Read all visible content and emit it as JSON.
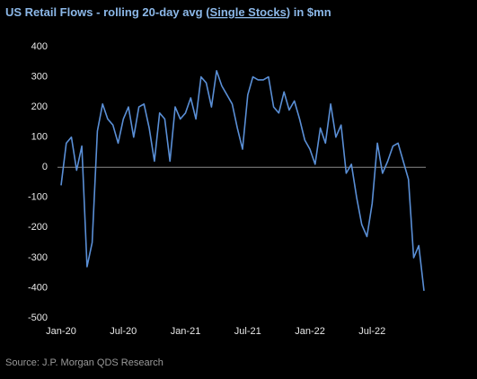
{
  "chart_data": {
    "type": "line",
    "title": [
      "US Retail Flows - rolling 20-day avg (",
      "Single Stocks",
      ") in $mn"
    ],
    "source": "Source: J.P. Morgan QDS Research",
    "categories": [
      "Jan-20",
      null,
      null,
      null,
      null,
      null,
      null,
      null,
      null,
      null,
      null,
      null,
      "Jul-20",
      null,
      null,
      null,
      null,
      null,
      null,
      null,
      null,
      null,
      null,
      null,
      "Jan-21",
      null,
      null,
      null,
      null,
      null,
      null,
      null,
      null,
      null,
      null,
      null,
      "Jul-21",
      null,
      null,
      null,
      null,
      null,
      null,
      null,
      null,
      null,
      null,
      null,
      "Jan-22",
      null,
      null,
      null,
      null,
      null,
      null,
      null,
      null,
      null,
      null,
      null,
      "Jul-22",
      null,
      null,
      null,
      null,
      null,
      null,
      null,
      null,
      null,
      null
    ],
    "series": [
      {
        "color": "#5a8fd6",
        "values": [
          -60,
          80,
          100,
          -10,
          70,
          -330,
          -250,
          120,
          210,
          160,
          140,
          80,
          160,
          200,
          100,
          200,
          210,
          130,
          20,
          180,
          160,
          20,
          200,
          160,
          180,
          230,
          160,
          300,
          280,
          200,
          320,
          270,
          240,
          210,
          130,
          60,
          240,
          300,
          290,
          290,
          300,
          200,
          180,
          250,
          190,
          220,
          160,
          90,
          60,
          10,
          130,
          80,
          210,
          100,
          140,
          -20,
          10,
          -100,
          -190,
          -230,
          -120,
          80,
          -20,
          20,
          70,
          80,
          20,
          -40,
          -300,
          -260,
          -410
        ]
      }
    ],
    "ylim": [
      -500,
      400
    ],
    "yticks": [
      -500,
      -400,
      -300,
      -200,
      -100,
      0,
      100,
      200,
      300,
      400
    ],
    "grid": false
  }
}
